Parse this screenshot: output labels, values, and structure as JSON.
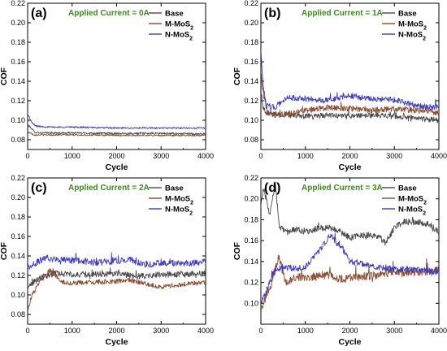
{
  "chart_data": [
    {
      "type": "line",
      "panel_tag": "(a)",
      "annotation": "Applied Current = 0A",
      "annotation_color": "#3a8a1a",
      "xlabel": "Cycle",
      "ylabel": "COF",
      "xlim": [
        0,
        4000
      ],
      "ylim": [
        0.07,
        0.22
      ],
      "xticks": [
        0,
        1000,
        2000,
        3000,
        4000
      ],
      "yticks": [
        0.08,
        0.1,
        0.12,
        0.14,
        0.16,
        0.18,
        0.2,
        0.22
      ],
      "ytick_labels": [
        "0.08",
        "0.10",
        "0.12",
        "0.14",
        "0.16",
        "0.18",
        "0.20",
        "0.22"
      ],
      "legend_position": "top-right",
      "series": [
        {
          "name": "Base",
          "name_sub": "",
          "color": "#4a4a4a",
          "noise": 0.001,
          "points": [
            [
              0,
              0.095
            ],
            [
              60,
              0.093
            ],
            [
              150,
              0.088
            ],
            [
              300,
              0.087
            ],
            [
              1000,
              0.087
            ],
            [
              2000,
              0.0865
            ],
            [
              3000,
              0.0865
            ],
            [
              4000,
              0.086
            ]
          ]
        },
        {
          "name": "M-MoS",
          "name_sub": "2",
          "color": "#8b4a2b",
          "noise": 0.0008,
          "points": [
            [
              0,
              0.088
            ],
            [
              60,
              0.087
            ],
            [
              150,
              0.085
            ],
            [
              300,
              0.085
            ],
            [
              1000,
              0.085
            ],
            [
              2000,
              0.0845
            ],
            [
              3000,
              0.0845
            ],
            [
              4000,
              0.0845
            ]
          ]
        },
        {
          "name": "N-MoS",
          "name_sub": "2",
          "color": "#3c3cc8",
          "noise": 0.0008,
          "points": [
            [
              0,
              0.106
            ],
            [
              40,
              0.103
            ],
            [
              100,
              0.097
            ],
            [
              200,
              0.094
            ],
            [
              500,
              0.093
            ],
            [
              1000,
              0.093
            ],
            [
              2000,
              0.092
            ],
            [
              3000,
              0.092
            ],
            [
              4000,
              0.092
            ]
          ]
        }
      ]
    },
    {
      "type": "line",
      "panel_tag": "(b)",
      "annotation": "Applied Current = 1A",
      "annotation_color": "#3a8a1a",
      "xlabel": "Cycle",
      "ylabel": "COF",
      "xlim": [
        0,
        4000
      ],
      "ylim": [
        0.07,
        0.22
      ],
      "xticks": [
        0,
        1000,
        2000,
        3000,
        4000
      ],
      "yticks": [
        0.08,
        0.1,
        0.12,
        0.14,
        0.16,
        0.18,
        0.2,
        0.22
      ],
      "ytick_labels": [
        "0.08",
        "0.10",
        "0.12",
        "0.14",
        "0.16",
        "0.18",
        "0.20",
        "0.22"
      ],
      "legend_position": "top-right",
      "series": [
        {
          "name": "Base",
          "name_sub": "",
          "color": "#4a4a4a",
          "noise": 0.0028,
          "points": [
            [
              0,
              0.13
            ],
            [
              40,
              0.115
            ],
            [
              120,
              0.108
            ],
            [
              300,
              0.106
            ],
            [
              700,
              0.105
            ],
            [
              1000,
              0.104
            ],
            [
              1500,
              0.105
            ],
            [
              2000,
              0.104
            ],
            [
              2500,
              0.105
            ],
            [
              3000,
              0.104
            ],
            [
              3500,
              0.102
            ],
            [
              4000,
              0.1
            ]
          ]
        },
        {
          "name": "M-MoS",
          "name_sub": "2",
          "color": "#8b4a2b",
          "noise": 0.003,
          "points": [
            [
              0,
              0.15
            ],
            [
              40,
              0.13
            ],
            [
              120,
              0.112
            ],
            [
              300,
              0.105
            ],
            [
              700,
              0.107
            ],
            [
              1000,
              0.11
            ],
            [
              1500,
              0.113
            ],
            [
              2000,
              0.112
            ],
            [
              2500,
              0.11
            ],
            [
              3000,
              0.112
            ],
            [
              3500,
              0.11
            ],
            [
              4000,
              0.108
            ]
          ]
        },
        {
          "name": "N-MoS",
          "name_sub": "2",
          "color": "#3c3cc8",
          "noise": 0.003,
          "points": [
            [
              0,
              0.175
            ],
            [
              40,
              0.14
            ],
            [
              120,
              0.115
            ],
            [
              300,
              0.113
            ],
            [
              600,
              0.123
            ],
            [
              1000,
              0.122
            ],
            [
              1500,
              0.12
            ],
            [
              2000,
              0.125
            ],
            [
              2500,
              0.122
            ],
            [
              3000,
              0.121
            ],
            [
              3500,
              0.115
            ],
            [
              4000,
              0.113
            ]
          ]
        }
      ]
    },
    {
      "type": "line",
      "panel_tag": "(c)",
      "annotation": "Applied Current = 2A",
      "annotation_color": "#3a8a1a",
      "xlabel": "Cycle",
      "ylabel": "COF",
      "xlim": [
        0,
        4000
      ],
      "ylim": [
        0.07,
        0.22
      ],
      "xticks": [
        0,
        1000,
        2000,
        3000,
        4000
      ],
      "yticks": [
        0.08,
        0.1,
        0.12,
        0.14,
        0.16,
        0.18,
        0.2,
        0.22
      ],
      "ytick_labels": [
        "0.08",
        "0.10",
        "0.12",
        "0.14",
        "0.16",
        "0.18",
        "0.20",
        "0.22"
      ],
      "legend_position": "top-right",
      "series": [
        {
          "name": "Base",
          "name_sub": "",
          "color": "#4a4a4a",
          "noise": 0.003,
          "points": [
            [
              0,
              0.108
            ],
            [
              100,
              0.112
            ],
            [
              300,
              0.118
            ],
            [
              600,
              0.122
            ],
            [
              1000,
              0.121
            ],
            [
              1500,
              0.121
            ],
            [
              2000,
              0.122
            ],
            [
              2500,
              0.119
            ],
            [
              3000,
              0.121
            ],
            [
              3500,
              0.121
            ],
            [
              4000,
              0.122
            ]
          ]
        },
        {
          "name": "M-MoS",
          "name_sub": "2",
          "color": "#8b4a2b",
          "noise": 0.0025,
          "points": [
            [
              0,
              0.085
            ],
            [
              100,
              0.1
            ],
            [
              300,
              0.115
            ],
            [
              500,
              0.125
            ],
            [
              800,
              0.113
            ],
            [
              1000,
              0.112
            ],
            [
              1500,
              0.113
            ],
            [
              2000,
              0.114
            ],
            [
              2300,
              0.115
            ],
            [
              2600,
              0.112
            ],
            [
              3000,
              0.108
            ],
            [
              3500,
              0.111
            ],
            [
              4000,
              0.113
            ]
          ]
        },
        {
          "name": "N-MoS",
          "name_sub": "2",
          "color": "#3c3cc8",
          "noise": 0.0035,
          "points": [
            [
              0,
              0.128
            ],
            [
              150,
              0.132
            ],
            [
              400,
              0.138
            ],
            [
              800,
              0.136
            ],
            [
              1200,
              0.135
            ],
            [
              1600,
              0.133
            ],
            [
              2000,
              0.135
            ],
            [
              2300,
              0.136
            ],
            [
              2600,
              0.131
            ],
            [
              3000,
              0.133
            ],
            [
              3500,
              0.132
            ],
            [
              4000,
              0.134
            ]
          ]
        }
      ]
    },
    {
      "type": "line",
      "panel_tag": "(d)",
      "annotation": "Applied Current = 3A",
      "annotation_color": "#3a8a1a",
      "xlabel": "Cycle",
      "ylabel": "COF",
      "xlim": [
        0,
        4000
      ],
      "ylim": [
        0.08,
        0.22
      ],
      "xticks": [
        0,
        1000,
        2000,
        3000,
        4000
      ],
      "yticks": [
        0.1,
        0.12,
        0.14,
        0.16,
        0.18,
        0.2,
        0.22
      ],
      "ytick_labels": [
        "0.10",
        "0.12",
        "0.14",
        "0.16",
        "0.18",
        "0.20",
        "0.22"
      ],
      "legend_position": "top-right",
      "series": [
        {
          "name": "Base",
          "name_sub": "",
          "color": "#4a4a4a",
          "noise": 0.003,
          "points": [
            [
              0,
              0.19
            ],
            [
              50,
              0.21
            ],
            [
              120,
              0.2
            ],
            [
              200,
              0.185
            ],
            [
              320,
              0.215
            ],
            [
              420,
              0.172
            ],
            [
              600,
              0.168
            ],
            [
              800,
              0.171
            ],
            [
              1000,
              0.168
            ],
            [
              1300,
              0.172
            ],
            [
              1600,
              0.172
            ],
            [
              1800,
              0.168
            ],
            [
              2000,
              0.163
            ],
            [
              2300,
              0.165
            ],
            [
              2600,
              0.165
            ],
            [
              2800,
              0.158
            ],
            [
              3000,
              0.172
            ],
            [
              3200,
              0.178
            ],
            [
              3500,
              0.178
            ],
            [
              3800,
              0.175
            ],
            [
              4000,
              0.168
            ]
          ]
        },
        {
          "name": "M-MoS",
          "name_sub": "2",
          "color": "#8b4a2b",
          "noise": 0.004,
          "points": [
            [
              0,
              0.095
            ],
            [
              100,
              0.105
            ],
            [
              250,
              0.12
            ],
            [
              400,
              0.145
            ],
            [
              550,
              0.12
            ],
            [
              800,
              0.125
            ],
            [
              1000,
              0.125
            ],
            [
              1500,
              0.127
            ],
            [
              1800,
              0.123
            ],
            [
              2000,
              0.125
            ],
            [
              2500,
              0.126
            ],
            [
              3000,
              0.13
            ],
            [
              3500,
              0.13
            ],
            [
              4000,
              0.132
            ]
          ]
        },
        {
          "name": "N-MoS",
          "name_sub": "2",
          "color": "#3c3cc8",
          "noise": 0.003,
          "points": [
            [
              0,
              0.1
            ],
            [
              100,
              0.11
            ],
            [
              300,
              0.13
            ],
            [
              500,
              0.135
            ],
            [
              800,
              0.133
            ],
            [
              1000,
              0.135
            ],
            [
              1300,
              0.15
            ],
            [
              1550,
              0.165
            ],
            [
              1800,
              0.155
            ],
            [
              2000,
              0.14
            ],
            [
              2300,
              0.138
            ],
            [
              2600,
              0.135
            ],
            [
              3000,
              0.133
            ],
            [
              3500,
              0.132
            ],
            [
              4000,
              0.13
            ]
          ]
        }
      ]
    }
  ]
}
